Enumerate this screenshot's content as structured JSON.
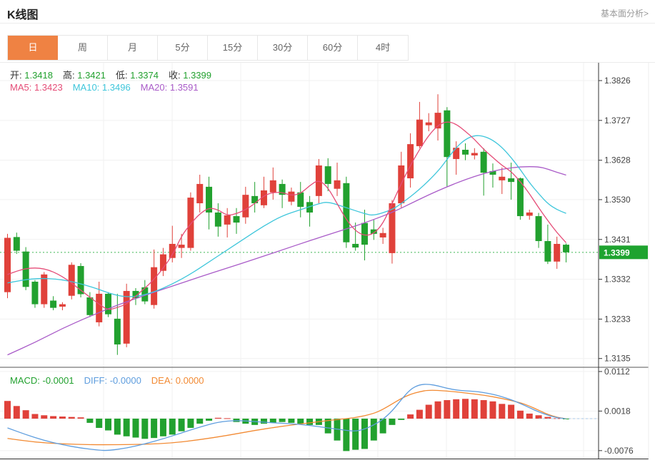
{
  "header": {
    "title": "K线图",
    "link": "基本面分析>"
  },
  "tabs": {
    "active": 0,
    "items": [
      "日",
      "周",
      "月",
      "5分",
      "15分",
      "30分",
      "60分",
      "4时"
    ]
  },
  "legend": {
    "ohlc": [
      {
        "label": "开:",
        "value": "1.3418"
      },
      {
        "label": "高:",
        "value": "1.3421"
      },
      {
        "label": "低:",
        "value": "1.3374"
      },
      {
        "label": "收:",
        "value": "1.3399"
      }
    ],
    "ma": [
      {
        "label": "MA5:",
        "value": "1.3423",
        "color": "#e54c77"
      },
      {
        "label": "MA10:",
        "value": "1.3496",
        "color": "#3ec6db"
      },
      {
        "label": "MA20:",
        "value": "1.3591",
        "color": "#a95bc8"
      }
    ],
    "macd": [
      {
        "label": "MACD:",
        "value": "-0.0001",
        "color": "#22a12f"
      },
      {
        "label": "DIFF:",
        "value": "-0.0000",
        "color": "#5e9dde"
      },
      {
        "label": "DEA:",
        "value": "0.0000",
        "color": "#f28a33"
      }
    ]
  },
  "colors": {
    "up": "#e0413a",
    "down": "#22a12f",
    "price_tag": "#1ea32f",
    "dotted_line": "#3db854",
    "ma5": "#e54c77",
    "ma10": "#3ec6db",
    "ma20": "#a95bc8",
    "diff": "#5e9dde",
    "dea": "#f28a33",
    "tab_active": "#ef8243",
    "axis_text": "#444444",
    "grid": "#f1f1f1"
  },
  "chart_data": {
    "type": "candlestick",
    "title": "K线图",
    "legend": [
      "MA5",
      "MA10",
      "MA20",
      "MACD",
      "DIFF",
      "DEA"
    ],
    "price_axis": {
      "ticks": [
        "1.3826",
        "1.3727",
        "1.3628",
        "1.3530",
        "1.3431",
        "1.3332",
        "1.3233",
        "1.3135"
      ],
      "max": 1.3826,
      "min": 1.3135,
      "last_price": 1.3399,
      "last_price_label": "1.3399"
    },
    "last_candle": {
      "open": 1.3418,
      "high": 1.3421,
      "low": 1.3374,
      "close": 1.3399
    },
    "candles": [
      [
        1.33,
        1.3445,
        1.3285,
        1.3435
      ],
      [
        1.3437,
        1.3448,
        1.3395,
        1.3403
      ],
      [
        1.3401,
        1.3412,
        1.3305,
        1.3313
      ],
      [
        1.3326,
        1.333,
        1.3261,
        1.327
      ],
      [
        1.327,
        1.335,
        1.3261,
        1.3344
      ],
      [
        1.3279,
        1.329,
        1.3255,
        1.3261
      ],
      [
        1.3264,
        1.3275,
        1.3255,
        1.327
      ],
      [
        1.3291,
        1.3374,
        1.3282,
        1.3368
      ],
      [
        1.3365,
        1.3372,
        1.3287,
        1.3295
      ],
      [
        1.3287,
        1.33,
        1.3238,
        1.3243
      ],
      [
        1.3225,
        1.3326,
        1.3215,
        1.3296
      ],
      [
        1.3296,
        1.33,
        1.3238,
        1.3245
      ],
      [
        1.3234,
        1.3296,
        1.3144,
        1.317
      ],
      [
        1.3172,
        1.3321,
        1.3163,
        1.3303
      ],
      [
        1.3303,
        1.331,
        1.3268,
        1.3285
      ],
      [
        1.3312,
        1.333,
        1.327,
        1.3277
      ],
      [
        1.3268,
        1.3406,
        1.3259,
        1.3362
      ],
      [
        1.3353,
        1.341,
        1.334,
        1.3394
      ],
      [
        1.3385,
        1.3465,
        1.3374,
        1.342
      ],
      [
        1.341,
        1.3445,
        1.3385,
        1.3418
      ],
      [
        1.341,
        1.3548,
        1.3403,
        1.3535
      ],
      [
        1.3521,
        1.3592,
        1.3498,
        1.3569
      ],
      [
        1.3562,
        1.3587,
        1.3456,
        1.3498
      ],
      [
        1.3498,
        1.3521,
        1.3438,
        1.3463
      ],
      [
        1.3468,
        1.3509,
        1.3436,
        1.3491
      ],
      [
        1.3489,
        1.3509,
        1.3445,
        1.3473
      ],
      [
        1.3486,
        1.3562,
        1.347,
        1.3542
      ],
      [
        1.3539,
        1.3574,
        1.3498,
        1.3521
      ],
      [
        1.3516,
        1.3587,
        1.3509,
        1.3553
      ],
      [
        1.3548,
        1.361,
        1.353,
        1.3578
      ],
      [
        1.3569,
        1.358,
        1.3509,
        1.3542
      ],
      [
        1.3525,
        1.356,
        1.3516,
        1.355
      ],
      [
        1.3548,
        1.3574,
        1.3486,
        1.3512
      ],
      [
        1.3524,
        1.3539,
        1.3463,
        1.3498
      ],
      [
        1.3539,
        1.3631,
        1.3521,
        1.3615
      ],
      [
        1.3613,
        1.3633,
        1.3551,
        1.3569
      ],
      [
        1.3557,
        1.3622,
        1.3539,
        1.3578
      ],
      [
        1.3571,
        1.3587,
        1.341,
        1.3424
      ],
      [
        1.342,
        1.3473,
        1.3403,
        1.3411
      ],
      [
        1.3472,
        1.3505,
        1.3379,
        1.3418
      ],
      [
        1.3456,
        1.348,
        1.343,
        1.3445
      ],
      [
        1.3436,
        1.346,
        1.342,
        1.3447
      ],
      [
        1.3397,
        1.3529,
        1.3371,
        1.3521
      ],
      [
        1.3521,
        1.3649,
        1.351,
        1.3615
      ],
      [
        1.3583,
        1.3695,
        1.356,
        1.3668
      ],
      [
        1.3663,
        1.3773,
        1.3658,
        1.3729
      ],
      [
        1.3715,
        1.3745,
        1.37,
        1.3722
      ],
      [
        1.3707,
        1.3792,
        1.3677,
        1.3746
      ],
      [
        1.3752,
        1.376,
        1.3563,
        1.3636
      ],
      [
        1.3631,
        1.3675,
        1.3592,
        1.3659
      ],
      [
        1.3654,
        1.367,
        1.3628,
        1.3642
      ],
      [
        1.364,
        1.3658,
        1.363,
        1.3646
      ],
      [
        1.3649,
        1.3658,
        1.354,
        1.3597
      ],
      [
        1.3601,
        1.362,
        1.356,
        1.3592
      ],
      [
        1.3578,
        1.361,
        1.3544,
        1.3587
      ],
      [
        1.3583,
        1.3622,
        1.353,
        1.3574
      ],
      [
        1.3583,
        1.3585,
        1.348,
        1.3489
      ],
      [
        1.349,
        1.3505,
        1.348,
        1.3498
      ],
      [
        1.3489,
        1.3497,
        1.341,
        1.3427
      ],
      [
        1.3427,
        1.3468,
        1.337,
        1.3376
      ],
      [
        1.3376,
        1.3438,
        1.3358,
        1.342
      ],
      [
        1.3418,
        1.3421,
        1.3374,
        1.3399
      ]
    ],
    "ma5": [
      [
        0,
        1.3344
      ],
      [
        2,
        1.336
      ],
      [
        4,
        1.336
      ],
      [
        6,
        1.334
      ],
      [
        8,
        1.3305
      ],
      [
        10,
        1.327
      ],
      [
        11,
        1.3255
      ],
      [
        12,
        1.3262
      ],
      [
        13,
        1.327
      ],
      [
        14,
        1.329
      ],
      [
        16,
        1.333
      ],
      [
        18,
        1.339
      ],
      [
        19,
        1.344
      ],
      [
        20,
        1.347
      ],
      [
        21,
        1.3495
      ],
      [
        22,
        1.351
      ],
      [
        23,
        1.3505
      ],
      [
        24,
        1.349
      ],
      [
        25,
        1.3495
      ],
      [
        26,
        1.3505
      ],
      [
        27,
        1.352
      ],
      [
        28,
        1.354
      ],
      [
        29,
        1.3548
      ],
      [
        30,
        1.3548
      ],
      [
        31,
        1.354
      ],
      [
        32,
        1.3545
      ],
      [
        33,
        1.3565
      ],
      [
        34,
        1.358
      ],
      [
        35,
        1.356
      ],
      [
        36,
        1.352
      ],
      [
        37,
        1.348
      ],
      [
        38,
        1.3452
      ],
      [
        39,
        1.344
      ],
      [
        40,
        1.3445
      ],
      [
        41,
        1.347
      ],
      [
        42,
        1.352
      ],
      [
        43,
        1.357
      ],
      [
        44,
        1.3615
      ],
      [
        45,
        1.3655
      ],
      [
        46,
        1.369
      ],
      [
        47,
        1.3715
      ],
      [
        48,
        1.3725
      ],
      [
        49,
        1.3718
      ],
      [
        50,
        1.37
      ],
      [
        51,
        1.368
      ],
      [
        52,
        1.3655
      ],
      [
        53,
        1.3635
      ],
      [
        54,
        1.3615
      ],
      [
        55,
        1.36
      ],
      [
        56,
        1.3575
      ],
      [
        57,
        1.3545
      ],
      [
        58,
        1.351
      ],
      [
        59,
        1.3478
      ],
      [
        60,
        1.3448
      ],
      [
        61,
        1.3423
      ]
    ],
    "ma10": [
      [
        0,
        1.3323
      ],
      [
        3,
        1.3335
      ],
      [
        6,
        1.3332
      ],
      [
        9,
        1.3315
      ],
      [
        12,
        1.329
      ],
      [
        14,
        1.3288
      ],
      [
        16,
        1.33
      ],
      [
        18,
        1.332
      ],
      [
        20,
        1.3345
      ],
      [
        22,
        1.3375
      ],
      [
        24,
        1.3405
      ],
      [
        26,
        1.3435
      ],
      [
        28,
        1.3465
      ],
      [
        30,
        1.349
      ],
      [
        32,
        1.3505
      ],
      [
        34,
        1.352
      ],
      [
        35,
        1.3525
      ],
      [
        37,
        1.351
      ],
      [
        39,
        1.3495
      ],
      [
        40,
        1.349
      ],
      [
        42,
        1.3505
      ],
      [
        43,
        1.352
      ],
      [
        45,
        1.3555
      ],
      [
        47,
        1.36
      ],
      [
        48,
        1.363
      ],
      [
        49,
        1.366
      ],
      [
        50,
        1.368
      ],
      [
        51,
        1.369
      ],
      [
        52,
        1.3688
      ],
      [
        53,
        1.3678
      ],
      [
        54,
        1.366
      ],
      [
        55,
        1.3635
      ],
      [
        56,
        1.3605
      ],
      [
        57,
        1.3572
      ],
      [
        58,
        1.3545
      ],
      [
        59,
        1.352
      ],
      [
        60,
        1.3505
      ],
      [
        61,
        1.3496
      ]
    ],
    "ma20": [
      [
        0,
        1.3144
      ],
      [
        3,
        1.3175
      ],
      [
        6,
        1.321
      ],
      [
        9,
        1.324
      ],
      [
        12,
        1.3268
      ],
      [
        15,
        1.3292
      ],
      [
        18,
        1.3315
      ],
      [
        21,
        1.3338
      ],
      [
        24,
        1.336
      ],
      [
        27,
        1.3382
      ],
      [
        30,
        1.3405
      ],
      [
        33,
        1.3428
      ],
      [
        36,
        1.345
      ],
      [
        39,
        1.3472
      ],
      [
        42,
        1.3498
      ],
      [
        44,
        1.352
      ],
      [
        46,
        1.3542
      ],
      [
        48,
        1.3562
      ],
      [
        50,
        1.358
      ],
      [
        52,
        1.3595
      ],
      [
        54,
        1.3606
      ],
      [
        56,
        1.3612
      ],
      [
        58,
        1.3612
      ],
      [
        59,
        1.3606
      ],
      [
        60,
        1.3598
      ],
      [
        61,
        1.3591
      ]
    ],
    "macd": {
      "axis_ticks": [
        "0.0112",
        "0.0018",
        "-0.0076"
      ],
      "values": {
        "macd": -0.0001,
        "diff": 0.0,
        "dea": 0.0
      },
      "hist": [
        0.0042,
        0.003,
        0.002,
        0.0011,
        0.0008,
        0.0006,
        0.0005,
        0.0004,
        0.0003,
        -0.001,
        -0.0022,
        -0.0028,
        -0.0038,
        -0.0042,
        -0.0045,
        -0.0048,
        -0.0046,
        -0.0042,
        -0.0038,
        -0.003,
        -0.0022,
        -0.0012,
        -0.0005,
        0.0002,
        0.0001,
        -0.0008,
        -0.0012,
        -0.0015,
        -0.0012,
        -0.001,
        -0.0008,
        -0.001,
        -0.0012,
        -0.0015,
        -0.0015,
        -0.0035,
        -0.0052,
        -0.0077,
        -0.0074,
        -0.0072,
        -0.0052,
        -0.0035,
        -0.0015,
        -0.0003,
        0.001,
        0.0021,
        0.0033,
        0.0041,
        0.0044,
        0.0046,
        0.0047,
        0.0046,
        0.0044,
        0.0041,
        0.0035,
        0.0033,
        0.0019,
        0.0012,
        0.0008,
        0.0004,
        0.0001,
        -0.0001
      ],
      "diff_line": [
        [
          0,
          -0.0022
        ],
        [
          2,
          -0.0038
        ],
        [
          4,
          -0.0052
        ],
        [
          6,
          -0.0062
        ],
        [
          8,
          -0.007
        ],
        [
          10,
          -0.0075
        ],
        [
          11,
          -0.0076
        ],
        [
          13,
          -0.007
        ],
        [
          15,
          -0.006
        ],
        [
          17,
          -0.0048
        ],
        [
          19,
          -0.0034
        ],
        [
          21,
          -0.002
        ],
        [
          23,
          -0.0008
        ],
        [
          25,
          -0.0004
        ],
        [
          27,
          -0.0007
        ],
        [
          29,
          -0.001
        ],
        [
          31,
          -0.0012
        ],
        [
          33,
          -0.0016
        ],
        [
          35,
          -0.0022
        ],
        [
          37,
          -0.0028
        ],
        [
          38,
          -0.003
        ],
        [
          39,
          -0.0025
        ],
        [
          40,
          -0.0015
        ],
        [
          41,
          -0.0002
        ],
        [
          42,
          0.0018
        ],
        [
          43,
          0.0045
        ],
        [
          44,
          0.007
        ],
        [
          45,
          0.0081
        ],
        [
          46,
          0.0082
        ],
        [
          47,
          0.0078
        ],
        [
          48,
          0.0072
        ],
        [
          49,
          0.0068
        ],
        [
          50,
          0.0066
        ],
        [
          51,
          0.0065
        ],
        [
          52,
          0.0062
        ],
        [
          53,
          0.0058
        ],
        [
          54,
          0.0052
        ],
        [
          55,
          0.0045
        ],
        [
          56,
          0.0036
        ],
        [
          57,
          0.0026
        ],
        [
          58,
          0.0016
        ],
        [
          59,
          0.0008
        ],
        [
          60,
          0.0002
        ],
        [
          61,
          0.0
        ]
      ],
      "dea_line": [
        [
          0,
          -0.0047
        ],
        [
          3,
          -0.0056
        ],
        [
          6,
          -0.006
        ],
        [
          9,
          -0.0062
        ],
        [
          12,
          -0.0062
        ],
        [
          15,
          -0.0061
        ],
        [
          18,
          -0.0058
        ],
        [
          21,
          -0.005
        ],
        [
          24,
          -0.004
        ],
        [
          27,
          -0.0028
        ],
        [
          30,
          -0.0018
        ],
        [
          33,
          -0.001
        ],
        [
          36,
          -0.0002
        ],
        [
          38,
          0.0002
        ],
        [
          40,
          0.0012
        ],
        [
          41,
          0.0022
        ],
        [
          42,
          0.0035
        ],
        [
          43,
          0.0048
        ],
        [
          44,
          0.0058
        ],
        [
          45,
          0.0064
        ],
        [
          46,
          0.0068
        ],
        [
          48,
          0.0066
        ],
        [
          50,
          0.0061
        ],
        [
          52,
          0.0056
        ],
        [
          54,
          0.0048
        ],
        [
          56,
          0.0038
        ],
        [
          57,
          0.003
        ],
        [
          58,
          0.002
        ],
        [
          59,
          0.001
        ],
        [
          60,
          0.0003
        ],
        [
          61,
          0.0
        ]
      ]
    }
  }
}
